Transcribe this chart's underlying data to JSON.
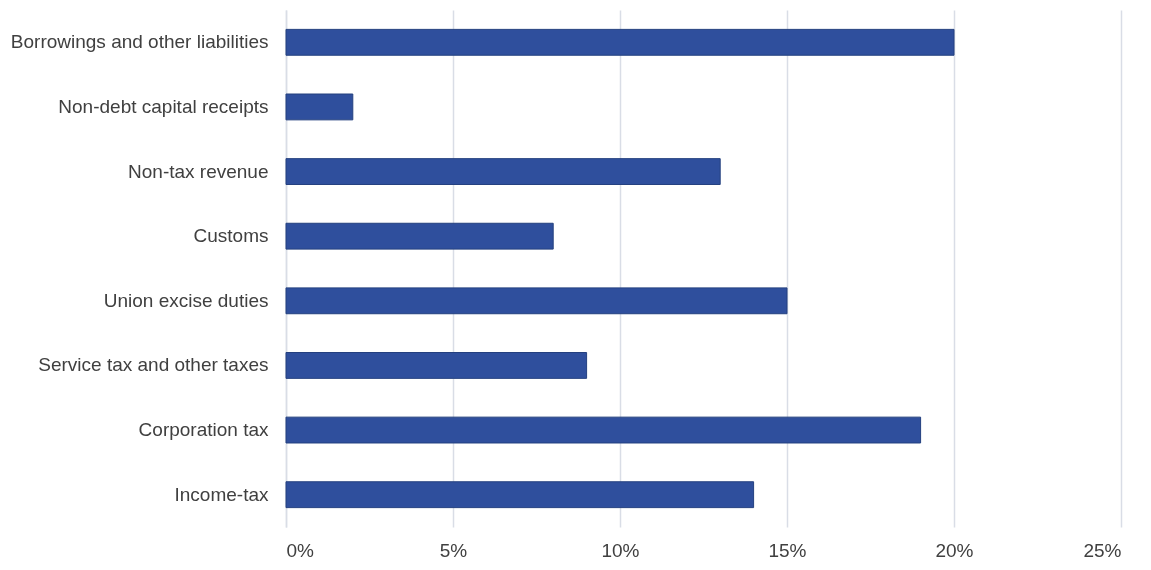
{
  "chart_data": {
    "type": "bar",
    "orientation": "horizontal",
    "categories": [
      "Borrowings and other liabilities",
      "Non-debt capital receipts",
      "Non-tax revenue",
      "Customs",
      "Union excise duties",
      "Service tax and other taxes",
      "Corporation tax",
      "Income-tax"
    ],
    "values": [
      20,
      2,
      13,
      8,
      15,
      9,
      19,
      14
    ],
    "color": "#2f4f9d",
    "xlim": [
      0,
      25
    ],
    "xticks": [
      {
        "value": 0,
        "label": "0%"
      },
      {
        "value": 5,
        "label": "5%"
      },
      {
        "value": 10,
        "label": "10%"
      },
      {
        "value": 15,
        "label": "15%"
      },
      {
        "value": 20,
        "label": "20%"
      },
      {
        "value": 25,
        "label": "25%"
      }
    ],
    "grid": "x"
  }
}
